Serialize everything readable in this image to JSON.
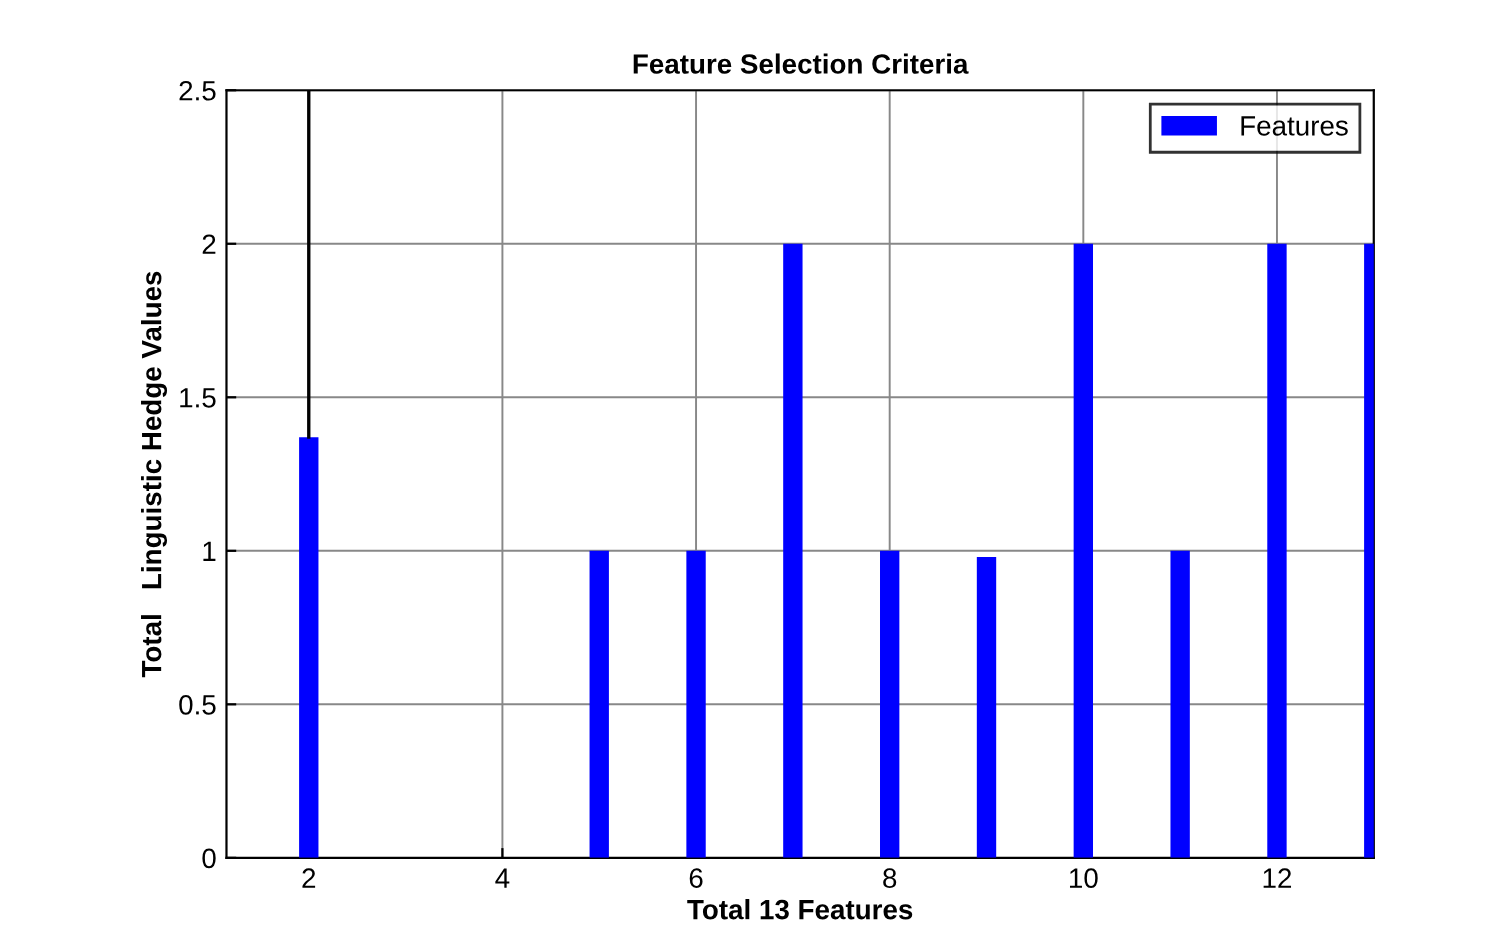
{
  "chart_data": {
    "type": "bar",
    "title": "Feature Selection Criteria",
    "xlabel": "Total 13 Features",
    "ylabel": "Total   Linguistic Hedge Values",
    "x": [
      2,
      3,
      4,
      5,
      6,
      7,
      8,
      9,
      10,
      11,
      12,
      13
    ],
    "series": [
      {
        "name": "Features",
        "color": "#0000ff",
        "values": [
          1.37,
          0,
          0,
          1,
          1,
          2,
          1,
          0.98,
          2,
          1,
          2,
          2
        ],
        "errors": [
          [
            1.37,
            2.5
          ],
          null,
          null,
          null,
          null,
          null,
          null,
          null,
          null,
          null,
          null,
          null
        ]
      }
    ],
    "xlim": [
      1.15,
      13
    ],
    "xticks": [
      2,
      4,
      6,
      8,
      10,
      12
    ],
    "ylim": [
      0,
      2.5
    ],
    "yticks": [
      0,
      0.5,
      1,
      1.5,
      2,
      2.5
    ],
    "grid": true,
    "legend": "top right"
  }
}
